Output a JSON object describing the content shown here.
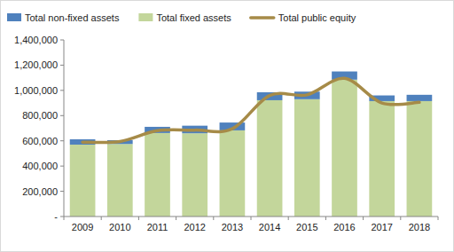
{
  "chart_data": {
    "type": "bar",
    "stacked": true,
    "grid": false,
    "legend": "top",
    "categories": [
      "2009",
      "2010",
      "2011",
      "2012",
      "2013",
      "2014",
      "2015",
      "2016",
      "2017",
      "2018"
    ],
    "series": [
      {
        "name": "Total non-fixed assets",
        "type": "bar",
        "color": "#4f81bd",
        "values": [
          42000,
          30000,
          49000,
          60000,
          62000,
          63000,
          60000,
          65000,
          45000,
          50000
        ]
      },
      {
        "name": "Total fixed assets",
        "type": "bar",
        "color": "#c3d69b",
        "values": [
          570000,
          575000,
          662000,
          660000,
          683000,
          922000,
          930000,
          1085000,
          915000,
          915000
        ]
      },
      {
        "name": "Total public equity",
        "type": "line",
        "color": "#a68b48",
        "line_style": "solid",
        "values": [
          590000,
          595000,
          680000,
          685000,
          695000,
          960000,
          965000,
          1095000,
          900000,
          905000
        ]
      }
    ],
    "ylim": [
      0,
      1400000
    ],
    "yticks": [
      {
        "value": 0,
        "label": "-"
      },
      {
        "value": 200000,
        "label": "200,000"
      },
      {
        "value": 400000,
        "label": "400,000"
      },
      {
        "value": 600000,
        "label": "600,000"
      },
      {
        "value": 800000,
        "label": "800,000"
      },
      {
        "value": 1000000,
        "label": "1,000,000"
      },
      {
        "value": 1200000,
        "label": "1,200,000"
      },
      {
        "value": 1400000,
        "label": "1,400,000"
      }
    ]
  }
}
